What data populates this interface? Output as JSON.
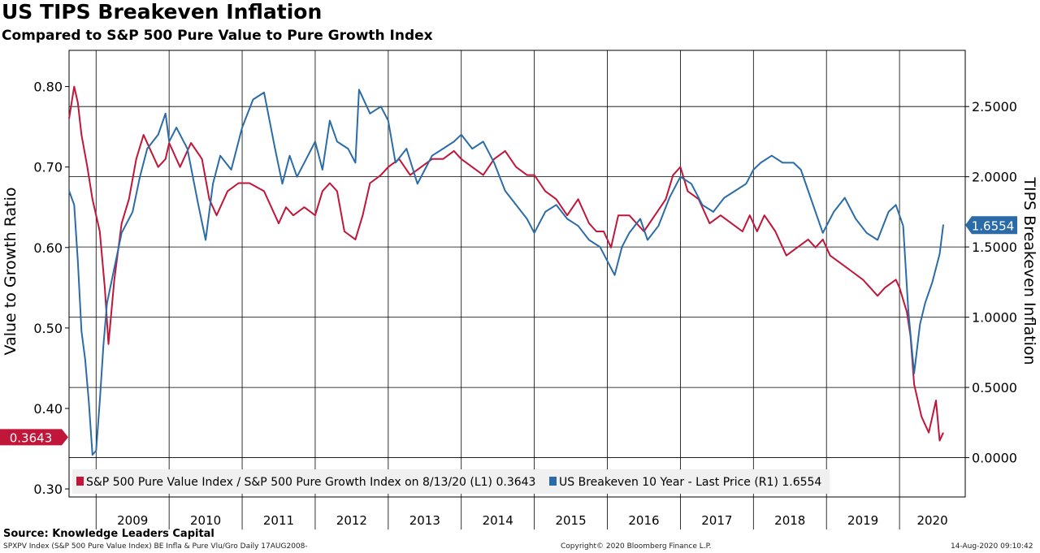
{
  "title": "US TIPS Breakeven Inflation",
  "subtitle": "Compared to S&P 500 Pure Value to Pure Growth Index",
  "source": "Source: Knowledge Leaders Capital",
  "footer": {
    "left": "SPXPV Index (S&P 500 Pure Value Index) BE Infla & Pure Vlu/Gro  Daily 17AUG2008-",
    "center": "Copyright© 2020 Bloomberg Finance L.P.",
    "right": "14-Aug-2020 09:10:42"
  },
  "colors": {
    "red": "#c0163a",
    "blue": "#2b6ca8",
    "grid": "#000000"
  },
  "chart_data": {
    "type": "line",
    "ylabel_left": "Value to Growth Ratio",
    "ylabel_right": "TIPS Breakeven Inflation",
    "y_left_ticks": [
      "0.30",
      "0.40",
      "0.50",
      "0.60",
      "0.70",
      "0.80"
    ],
    "y_right_ticks": [
      "0.0000",
      "0.5000",
      "1.0000",
      "1.5000",
      "2.0000",
      "2.5000"
    ],
    "ylim_left": [
      0.29,
      0.845
    ],
    "ylim_right": [
      -0.28,
      2.9
    ],
    "x_categories": [
      "2009",
      "2010",
      "2011",
      "2012",
      "2013",
      "2014",
      "2015",
      "2016",
      "2017",
      "2018",
      "2019",
      "2020"
    ],
    "xlim": [
      2008.63,
      2020.9
    ],
    "grid": true,
    "legend_position": "bottom",
    "series": [
      {
        "name": "S&P 500 Pure Value Index / S&P 500 Pure Growth Index on 8/13/20 (L1) 0.3643",
        "axis": "left",
        "last_value": "0.3643",
        "x": [
          2008.63,
          2008.7,
          2008.75,
          2008.8,
          2008.88,
          2008.95,
          2009.05,
          2009.12,
          2009.17,
          2009.25,
          2009.35,
          2009.45,
          2009.55,
          2009.65,
          2009.75,
          2009.85,
          2009.95,
          2010.0,
          2010.15,
          2010.3,
          2010.45,
          2010.55,
          2010.65,
          2010.8,
          2010.95,
          2011.1,
          2011.3,
          2011.5,
          2011.6,
          2011.7,
          2011.85,
          2012.0,
          2012.1,
          2012.2,
          2012.3,
          2012.4,
          2012.55,
          2012.65,
          2012.75,
          2012.9,
          2013.0,
          2013.15,
          2013.3,
          2013.45,
          2013.6,
          2013.75,
          2013.9,
          2014.0,
          2014.15,
          2014.3,
          2014.45,
          2014.6,
          2014.75,
          2014.9,
          2015.0,
          2015.15,
          2015.3,
          2015.45,
          2015.6,
          2015.75,
          2015.85,
          2015.95,
          2016.05,
          2016.15,
          2016.3,
          2016.5,
          2016.65,
          2016.8,
          2016.9,
          2017.0,
          2017.1,
          2017.25,
          2017.4,
          2017.55,
          2017.7,
          2017.85,
          2017.95,
          2018.05,
          2018.15,
          2018.3,
          2018.45,
          2018.6,
          2018.75,
          2018.85,
          2018.95,
          2019.05,
          2019.2,
          2019.35,
          2019.5,
          2019.6,
          2019.7,
          2019.8,
          2019.95,
          2020.0,
          2020.1,
          2020.15,
          2020.2,
          2020.3,
          2020.4,
          2020.5,
          2020.55,
          2020.6
        ],
        "values": [
          0.76,
          0.8,
          0.78,
          0.74,
          0.7,
          0.66,
          0.62,
          0.55,
          0.48,
          0.56,
          0.63,
          0.66,
          0.71,
          0.74,
          0.72,
          0.7,
          0.71,
          0.73,
          0.7,
          0.73,
          0.71,
          0.66,
          0.64,
          0.67,
          0.68,
          0.68,
          0.67,
          0.63,
          0.65,
          0.64,
          0.65,
          0.64,
          0.67,
          0.68,
          0.67,
          0.62,
          0.61,
          0.64,
          0.68,
          0.69,
          0.7,
          0.71,
          0.69,
          0.7,
          0.71,
          0.71,
          0.72,
          0.71,
          0.7,
          0.69,
          0.71,
          0.72,
          0.7,
          0.69,
          0.69,
          0.67,
          0.66,
          0.64,
          0.66,
          0.63,
          0.62,
          0.62,
          0.6,
          0.64,
          0.64,
          0.62,
          0.64,
          0.66,
          0.69,
          0.7,
          0.67,
          0.66,
          0.63,
          0.64,
          0.63,
          0.62,
          0.64,
          0.62,
          0.64,
          0.62,
          0.59,
          0.6,
          0.61,
          0.6,
          0.61,
          0.59,
          0.58,
          0.57,
          0.56,
          0.55,
          0.54,
          0.55,
          0.56,
          0.55,
          0.52,
          0.49,
          0.43,
          0.39,
          0.37,
          0.41,
          0.36,
          0.37
        ]
      },
      {
        "name": "US Breakeven 10 Year - Last Price (R1) 1.6554",
        "axis": "right",
        "last_value": "1.6554",
        "x": [
          2008.63,
          2008.7,
          2008.75,
          2008.8,
          2008.85,
          2008.9,
          2008.95,
          2009.0,
          2009.05,
          2009.1,
          2009.15,
          2009.25,
          2009.35,
          2009.5,
          2009.6,
          2009.7,
          2009.85,
          2009.95,
          2010.0,
          2010.1,
          2010.25,
          2010.4,
          2010.5,
          2010.6,
          2010.7,
          2010.85,
          2011.0,
          2011.15,
          2011.3,
          2011.45,
          2011.55,
          2011.65,
          2011.75,
          2011.85,
          2012.0,
          2012.1,
          2012.2,
          2012.3,
          2012.45,
          2012.55,
          2012.6,
          2012.75,
          2012.9,
          2013.0,
          2013.1,
          2013.25,
          2013.4,
          2013.5,
          2013.6,
          2013.75,
          2013.9,
          2014.0,
          2014.15,
          2014.3,
          2014.45,
          2014.6,
          2014.75,
          2014.9,
          2015.0,
          2015.15,
          2015.3,
          2015.45,
          2015.6,
          2015.75,
          2015.9,
          2016.0,
          2016.1,
          2016.2,
          2016.3,
          2016.45,
          2016.55,
          2016.7,
          2016.85,
          2017.0,
          2017.15,
          2017.3,
          2017.45,
          2017.6,
          2017.75,
          2017.9,
          2018.0,
          2018.1,
          2018.25,
          2018.4,
          2018.55,
          2018.65,
          2018.75,
          2018.85,
          2018.95,
          2019.1,
          2019.25,
          2019.4,
          2019.55,
          2019.7,
          2019.85,
          2019.95,
          2020.05,
          2020.12,
          2020.2,
          2020.28,
          2020.35,
          2020.45,
          2020.55,
          2020.6
        ],
        "values": [
          1.9,
          1.8,
          1.4,
          0.9,
          0.7,
          0.4,
          0.02,
          0.05,
          0.4,
          0.8,
          1.1,
          1.35,
          1.6,
          1.75,
          2.0,
          2.2,
          2.3,
          2.45,
          2.25,
          2.35,
          2.2,
          1.8,
          1.55,
          1.95,
          2.15,
          2.05,
          2.35,
          2.55,
          2.6,
          2.2,
          1.95,
          2.15,
          2.0,
          2.1,
          2.25,
          2.05,
          2.4,
          2.25,
          2.2,
          2.1,
          2.62,
          2.45,
          2.5,
          2.4,
          2.1,
          2.2,
          1.95,
          2.05,
          2.15,
          2.2,
          2.25,
          2.3,
          2.2,
          2.25,
          2.1,
          1.9,
          1.8,
          1.7,
          1.6,
          1.75,
          1.8,
          1.7,
          1.65,
          1.55,
          1.5,
          1.4,
          1.3,
          1.5,
          1.6,
          1.7,
          1.55,
          1.65,
          1.85,
          2.0,
          1.95,
          1.8,
          1.75,
          1.85,
          1.9,
          1.95,
          2.05,
          2.1,
          2.15,
          2.1,
          2.1,
          2.05,
          1.9,
          1.75,
          1.6,
          1.75,
          1.85,
          1.7,
          1.6,
          1.55,
          1.75,
          1.8,
          1.65,
          1.05,
          0.6,
          0.95,
          1.1,
          1.25,
          1.45,
          1.66
        ]
      }
    ]
  }
}
